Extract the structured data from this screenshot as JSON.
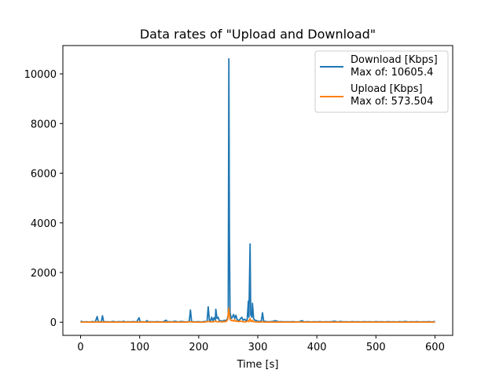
{
  "chart_data": {
    "type": "line",
    "title": "Data rates of \"Upload and Download\"",
    "xlabel": "Time [s]",
    "ylabel": "",
    "xlim": [
      -30,
      630
    ],
    "ylim": [
      -530,
      11140
    ],
    "xticks": [
      0,
      100,
      200,
      300,
      400,
      500,
      600
    ],
    "yticks": [
      0,
      2000,
      4000,
      6000,
      8000,
      10000
    ],
    "grid": false,
    "legend_position": "top-right",
    "series": [
      {
        "name": "Download [Kbps]",
        "annotation": "Max of: 10605.4",
        "color": "#1f77b4",
        "points": [
          [
            0,
            40
          ],
          [
            5,
            12
          ],
          [
            10,
            18
          ],
          [
            15,
            8
          ],
          [
            20,
            25
          ],
          [
            25,
            15
          ],
          [
            28,
            230
          ],
          [
            30,
            20
          ],
          [
            35,
            10
          ],
          [
            37,
            260
          ],
          [
            39,
            15
          ],
          [
            45,
            20
          ],
          [
            50,
            10
          ],
          [
            55,
            30
          ],
          [
            60,
            12
          ],
          [
            65,
            25
          ],
          [
            70,
            15
          ],
          [
            73,
            40
          ],
          [
            75,
            10
          ],
          [
            80,
            20
          ],
          [
            85,
            15
          ],
          [
            90,
            25
          ],
          [
            95,
            10
          ],
          [
            99,
            180
          ],
          [
            101,
            15
          ],
          [
            105,
            20
          ],
          [
            110,
            12
          ],
          [
            112,
            60
          ],
          [
            115,
            18
          ],
          [
            120,
            20
          ],
          [
            125,
            15
          ],
          [
            130,
            25
          ],
          [
            135,
            10
          ],
          [
            140,
            20
          ],
          [
            145,
            80
          ],
          [
            147,
            15
          ],
          [
            150,
            25
          ],
          [
            155,
            15
          ],
          [
            160,
            40
          ],
          [
            165,
            12
          ],
          [
            170,
            30
          ],
          [
            175,
            20
          ],
          [
            180,
            15
          ],
          [
            184,
            30
          ],
          [
            186,
            490
          ],
          [
            188,
            25
          ],
          [
            190,
            20
          ],
          [
            195,
            15
          ],
          [
            200,
            25
          ],
          [
            205,
            12
          ],
          [
            210,
            30
          ],
          [
            214,
            20
          ],
          [
            216,
            620
          ],
          [
            218,
            80
          ],
          [
            220,
            60
          ],
          [
            222,
            200
          ],
          [
            224,
            50
          ],
          [
            226,
            180
          ],
          [
            228,
            90
          ],
          [
            229,
            520
          ],
          [
            231,
            150
          ],
          [
            233,
            200
          ],
          [
            235,
            40
          ],
          [
            238,
            60
          ],
          [
            240,
            30
          ],
          [
            243,
            80
          ],
          [
            245,
            60
          ],
          [
            248,
            100
          ],
          [
            250,
            300
          ],
          [
            251,
            10605
          ],
          [
            252,
            3500
          ],
          [
            253,
            400
          ],
          [
            255,
            150
          ],
          [
            257,
            200
          ],
          [
            259,
            310
          ],
          [
            261,
            150
          ],
          [
            263,
            280
          ],
          [
            265,
            100
          ],
          [
            268,
            60
          ],
          [
            270,
            120
          ],
          [
            273,
            200
          ],
          [
            275,
            80
          ],
          [
            278,
            120
          ],
          [
            280,
            60
          ],
          [
            282,
            100
          ],
          [
            284,
            850
          ],
          [
            285,
            200
          ],
          [
            287,
            3150
          ],
          [
            288,
            300
          ],
          [
            290,
            200
          ],
          [
            291,
            760
          ],
          [
            293,
            150
          ],
          [
            295,
            80
          ],
          [
            298,
            60
          ],
          [
            300,
            40
          ],
          [
            303,
            30
          ],
          [
            306,
            50
          ],
          [
            308,
            380
          ],
          [
            310,
            40
          ],
          [
            313,
            30
          ],
          [
            316,
            25
          ],
          [
            320,
            20
          ],
          [
            325,
            30
          ],
          [
            330,
            60
          ],
          [
            335,
            20
          ],
          [
            340,
            25
          ],
          [
            345,
            15
          ],
          [
            350,
            20
          ],
          [
            355,
            15
          ],
          [
            360,
            25
          ],
          [
            365,
            12
          ],
          [
            370,
            20
          ],
          [
            375,
            60
          ],
          [
            378,
            20
          ],
          [
            380,
            15
          ],
          [
            385,
            25
          ],
          [
            390,
            12
          ],
          [
            395,
            20
          ],
          [
            400,
            15
          ],
          [
            405,
            25
          ],
          [
            410,
            12
          ],
          [
            415,
            20
          ],
          [
            420,
            15
          ],
          [
            425,
            25
          ],
          [
            430,
            40
          ],
          [
            435,
            12
          ],
          [
            440,
            30
          ],
          [
            445,
            15
          ],
          [
            450,
            20
          ],
          [
            455,
            12
          ],
          [
            460,
            25
          ],
          [
            465,
            15
          ],
          [
            470,
            20
          ],
          [
            475,
            12
          ],
          [
            480,
            25
          ],
          [
            485,
            15
          ],
          [
            490,
            20
          ],
          [
            495,
            12
          ],
          [
            500,
            25
          ],
          [
            505,
            15
          ],
          [
            510,
            20
          ],
          [
            515,
            12
          ],
          [
            520,
            25
          ],
          [
            525,
            15
          ],
          [
            530,
            20
          ],
          [
            535,
            12
          ],
          [
            540,
            25
          ],
          [
            545,
            15
          ],
          [
            550,
            30
          ],
          [
            555,
            12
          ],
          [
            560,
            20
          ],
          [
            565,
            15
          ],
          [
            570,
            25
          ],
          [
            575,
            12
          ],
          [
            580,
            20
          ],
          [
            585,
            15
          ],
          [
            590,
            25
          ],
          [
            595,
            12
          ],
          [
            600,
            30
          ]
        ]
      },
      {
        "name": "Upload [Kbps]",
        "annotation": "Max of: 573.504",
        "color": "#ff7f0e",
        "points": [
          [
            0,
            5
          ],
          [
            10,
            3
          ],
          [
            20,
            6
          ],
          [
            28,
            10
          ],
          [
            30,
            4
          ],
          [
            40,
            5
          ],
          [
            50,
            3
          ],
          [
            60,
            6
          ],
          [
            70,
            4
          ],
          [
            80,
            5
          ],
          [
            90,
            3
          ],
          [
            100,
            8
          ],
          [
            110,
            4
          ],
          [
            120,
            5
          ],
          [
            130,
            3
          ],
          [
            140,
            6
          ],
          [
            150,
            4
          ],
          [
            160,
            5
          ],
          [
            170,
            3
          ],
          [
            180,
            6
          ],
          [
            186,
            20
          ],
          [
            190,
            4
          ],
          [
            200,
            5
          ],
          [
            210,
            3
          ],
          [
            216,
            30
          ],
          [
            220,
            10
          ],
          [
            225,
            20
          ],
          [
            229,
            40
          ],
          [
            232,
            15
          ],
          [
            236,
            25
          ],
          [
            240,
            10
          ],
          [
            243,
            30
          ],
          [
            246,
            20
          ],
          [
            249,
            100
          ],
          [
            251,
            573
          ],
          [
            252,
            300
          ],
          [
            253,
            120
          ],
          [
            255,
            60
          ],
          [
            257,
            80
          ],
          [
            259,
            40
          ],
          [
            261,
            100
          ],
          [
            263,
            30
          ],
          [
            265,
            50
          ],
          [
            268,
            20
          ],
          [
            270,
            40
          ],
          [
            273,
            30
          ],
          [
            276,
            20
          ],
          [
            280,
            15
          ],
          [
            284,
            60
          ],
          [
            285,
            20
          ],
          [
            287,
            150
          ],
          [
            288,
            40
          ],
          [
            290,
            20
          ],
          [
            291,
            80
          ],
          [
            293,
            20
          ],
          [
            296,
            10
          ],
          [
            300,
            8
          ],
          [
            305,
            6
          ],
          [
            308,
            25
          ],
          [
            310,
            6
          ],
          [
            320,
            5
          ],
          [
            330,
            8
          ],
          [
            340,
            4
          ],
          [
            350,
            5
          ],
          [
            360,
            3
          ],
          [
            375,
            8
          ],
          [
            380,
            4
          ],
          [
            390,
            5
          ],
          [
            400,
            3
          ],
          [
            410,
            6
          ],
          [
            420,
            4
          ],
          [
            430,
            5
          ],
          [
            440,
            3
          ],
          [
            450,
            6
          ],
          [
            460,
            4
          ],
          [
            470,
            5
          ],
          [
            480,
            3
          ],
          [
            490,
            6
          ],
          [
            500,
            4
          ],
          [
            510,
            5
          ],
          [
            520,
            3
          ],
          [
            530,
            6
          ],
          [
            540,
            4
          ],
          [
            550,
            5
          ],
          [
            560,
            3
          ],
          [
            570,
            6
          ],
          [
            580,
            4
          ],
          [
            590,
            5
          ],
          [
            600,
            3
          ]
        ]
      }
    ]
  }
}
